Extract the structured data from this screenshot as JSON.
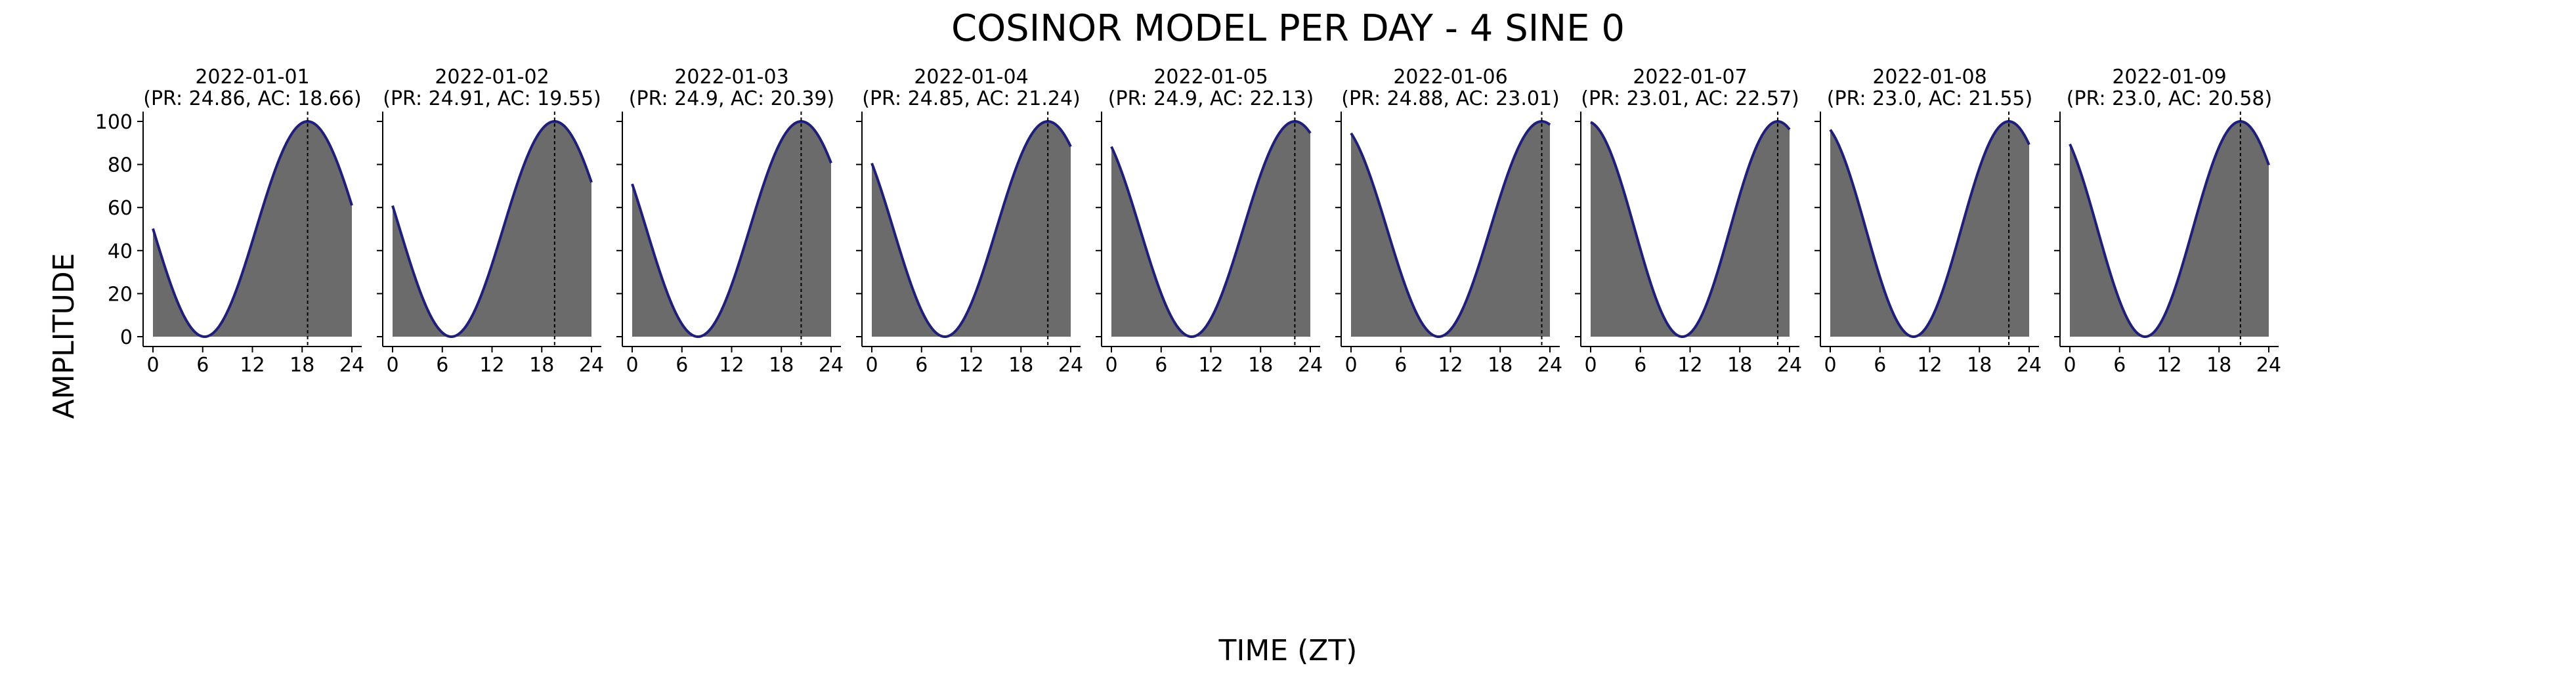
{
  "figure": {
    "title": "COSINOR MODEL PER DAY - 4 SINE 0",
    "xlabel": "TIME (ZT)",
    "ylabel": "AMPLITUDE"
  },
  "chart_data": {
    "type": "area",
    "title": "COSINOR MODEL PER DAY - 4 SINE 0",
    "xlabel": "TIME (ZT)",
    "ylabel": "AMPLITUDE",
    "xlim": [
      0,
      24
    ],
    "ylim": [
      0,
      100
    ],
    "x_ticks": [
      0,
      6,
      12,
      18,
      24
    ],
    "y_ticks": [
      0,
      20,
      40,
      60,
      80,
      100
    ],
    "y_tick_labels_shown_on_first_panel_only": true,
    "grid": false,
    "legend": "none",
    "colors": {
      "fill": "#6b6b6b",
      "line": "#1f1f7a",
      "acrophase_line": "#000000"
    },
    "panels": [
      {
        "date": "2022-01-01",
        "subtitle": "(PR: 24.86, AC: 18.66)",
        "period": 24.86,
        "acrophase": 18.66
      },
      {
        "date": "2022-01-02",
        "subtitle": "(PR: 24.91, AC: 19.55)",
        "period": 24.91,
        "acrophase": 19.55
      },
      {
        "date": "2022-01-03",
        "subtitle": "(PR: 24.9, AC: 20.39)",
        "period": 24.9,
        "acrophase": 20.39
      },
      {
        "date": "2022-01-04",
        "subtitle": "(PR: 24.85, AC: 21.24)",
        "period": 24.85,
        "acrophase": 21.24
      },
      {
        "date": "2022-01-05",
        "subtitle": "(PR: 24.9, AC: 22.13)",
        "period": 24.9,
        "acrophase": 22.13
      },
      {
        "date": "2022-01-06",
        "subtitle": "(PR: 24.88, AC: 23.01)",
        "period": 24.88,
        "acrophase": 23.01
      },
      {
        "date": "2022-01-07",
        "subtitle": "(PR: 23.01, AC: 22.57)",
        "period": 23.01,
        "acrophase": 22.57
      },
      {
        "date": "2022-01-08",
        "subtitle": "(PR: 23.0, AC: 21.55)",
        "period": 23.0,
        "acrophase": 21.55
      },
      {
        "date": "2022-01-09",
        "subtitle": "(PR: 23.0, AC: 20.58)",
        "period": 23.0,
        "acrophase": 20.58
      }
    ]
  }
}
